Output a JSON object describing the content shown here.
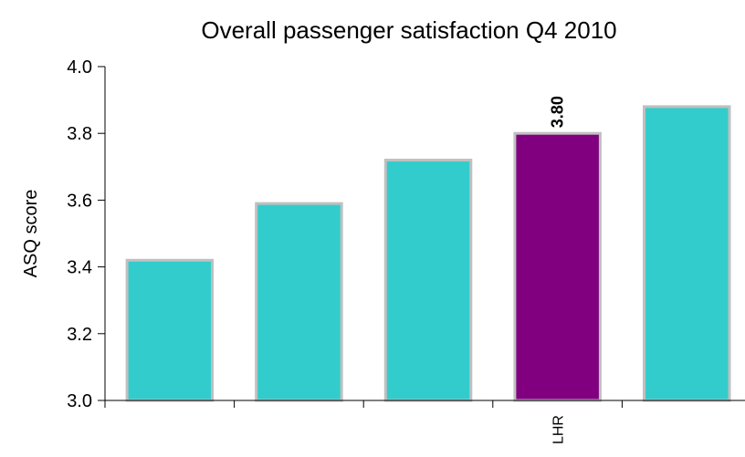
{
  "chart_data": {
    "type": "bar",
    "title": "Overall passenger satisfaction Q4 2010",
    "xlabel": "",
    "ylabel": "ASQ score",
    "ylim": [
      3.0,
      4.0
    ],
    "yticks": [
      "3.0",
      "3.2",
      "3.4",
      "3.6",
      "3.8",
      "4.0"
    ],
    "categories": [
      "",
      "",
      "",
      "LHR",
      ""
    ],
    "values": [
      3.42,
      3.59,
      3.72,
      3.8,
      3.88
    ],
    "data_labels": [
      "",
      "",
      "",
      "3.80",
      ""
    ],
    "colors": {
      "bar": "#33CCCC",
      "highlight": "#800080",
      "bar_outline": "#C0C0C0",
      "axis": "#000000"
    },
    "highlight_index": 3,
    "grid": false,
    "legend": "none"
  }
}
